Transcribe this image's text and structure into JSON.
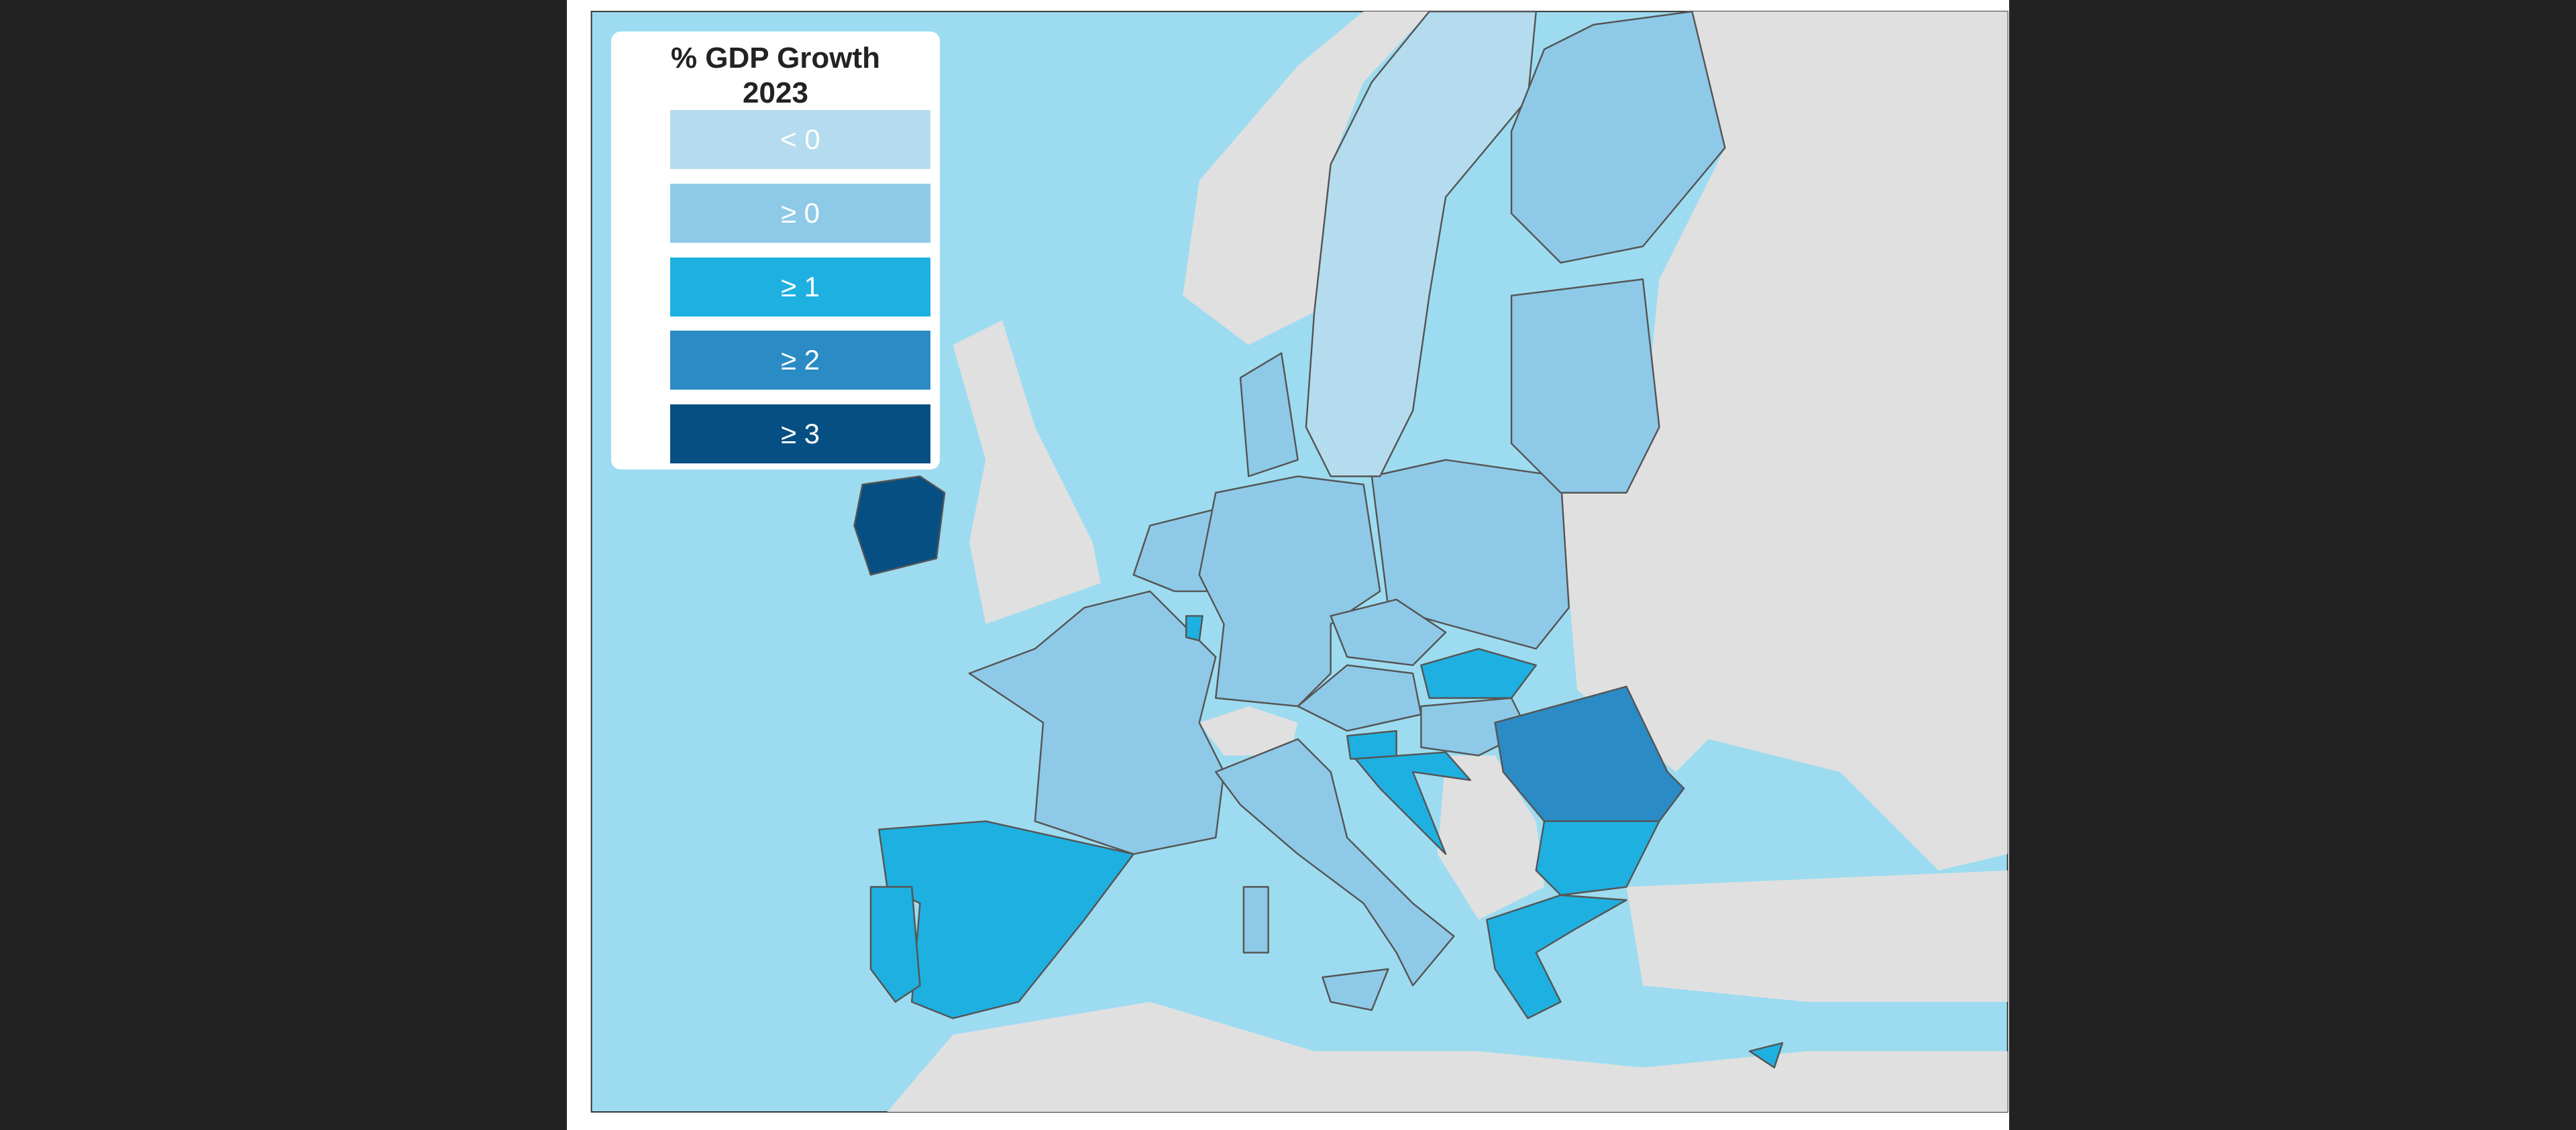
{
  "chart_data": {
    "type": "choropleth",
    "title": "% GDP Growth 2023",
    "legend": {
      "title_line1": "% GDP Growth",
      "title_line2": "2023",
      "placement": "top-left",
      "classes": [
        {
          "label": "< 0",
          "color": "#b4dcee"
        },
        {
          "label": "≥ 0",
          "color": "#8fc9e8"
        },
        {
          "label": "≥ 1",
          "color": "#1eb0e0"
        },
        {
          "label": "≥ 2",
          "color": "#2b8bc5"
        },
        {
          "label": "≥ 3",
          "color": "#054f82"
        }
      ]
    },
    "regions": [
      {
        "id": "IE",
        "class": 4
      },
      {
        "id": "ES",
        "class": 2
      },
      {
        "id": "PT",
        "class": 2
      },
      {
        "id": "FR",
        "class": 1
      },
      {
        "id": "BENL",
        "class": 1
      },
      {
        "id": "LU",
        "class": 2
      },
      {
        "id": "DE",
        "class": 1
      },
      {
        "id": "DK",
        "class": 1
      },
      {
        "id": "PL",
        "class": 1
      },
      {
        "id": "CZ",
        "class": 1
      },
      {
        "id": "AT",
        "class": 1
      },
      {
        "id": "SK",
        "class": 2
      },
      {
        "id": "HU",
        "class": 1
      },
      {
        "id": "SI",
        "class": 2
      },
      {
        "id": "HR",
        "class": 2
      },
      {
        "id": "RO",
        "class": 3
      },
      {
        "id": "BG",
        "class": 2
      },
      {
        "id": "GR",
        "class": 2
      },
      {
        "id": "IT",
        "class": 1
      },
      {
        "id": "IT-SAR",
        "class": 1
      },
      {
        "id": "IT-SIC",
        "class": 1
      },
      {
        "id": "SE",
        "class": 0
      },
      {
        "id": "FI",
        "class": 1
      },
      {
        "id": "BALTIC",
        "class": 1
      },
      {
        "id": "CY",
        "class": 2
      }
    ],
    "colors": {
      "sea": "#9ddcf0",
      "non_eu_land": "#e0e0e0",
      "border": "#555555"
    }
  }
}
